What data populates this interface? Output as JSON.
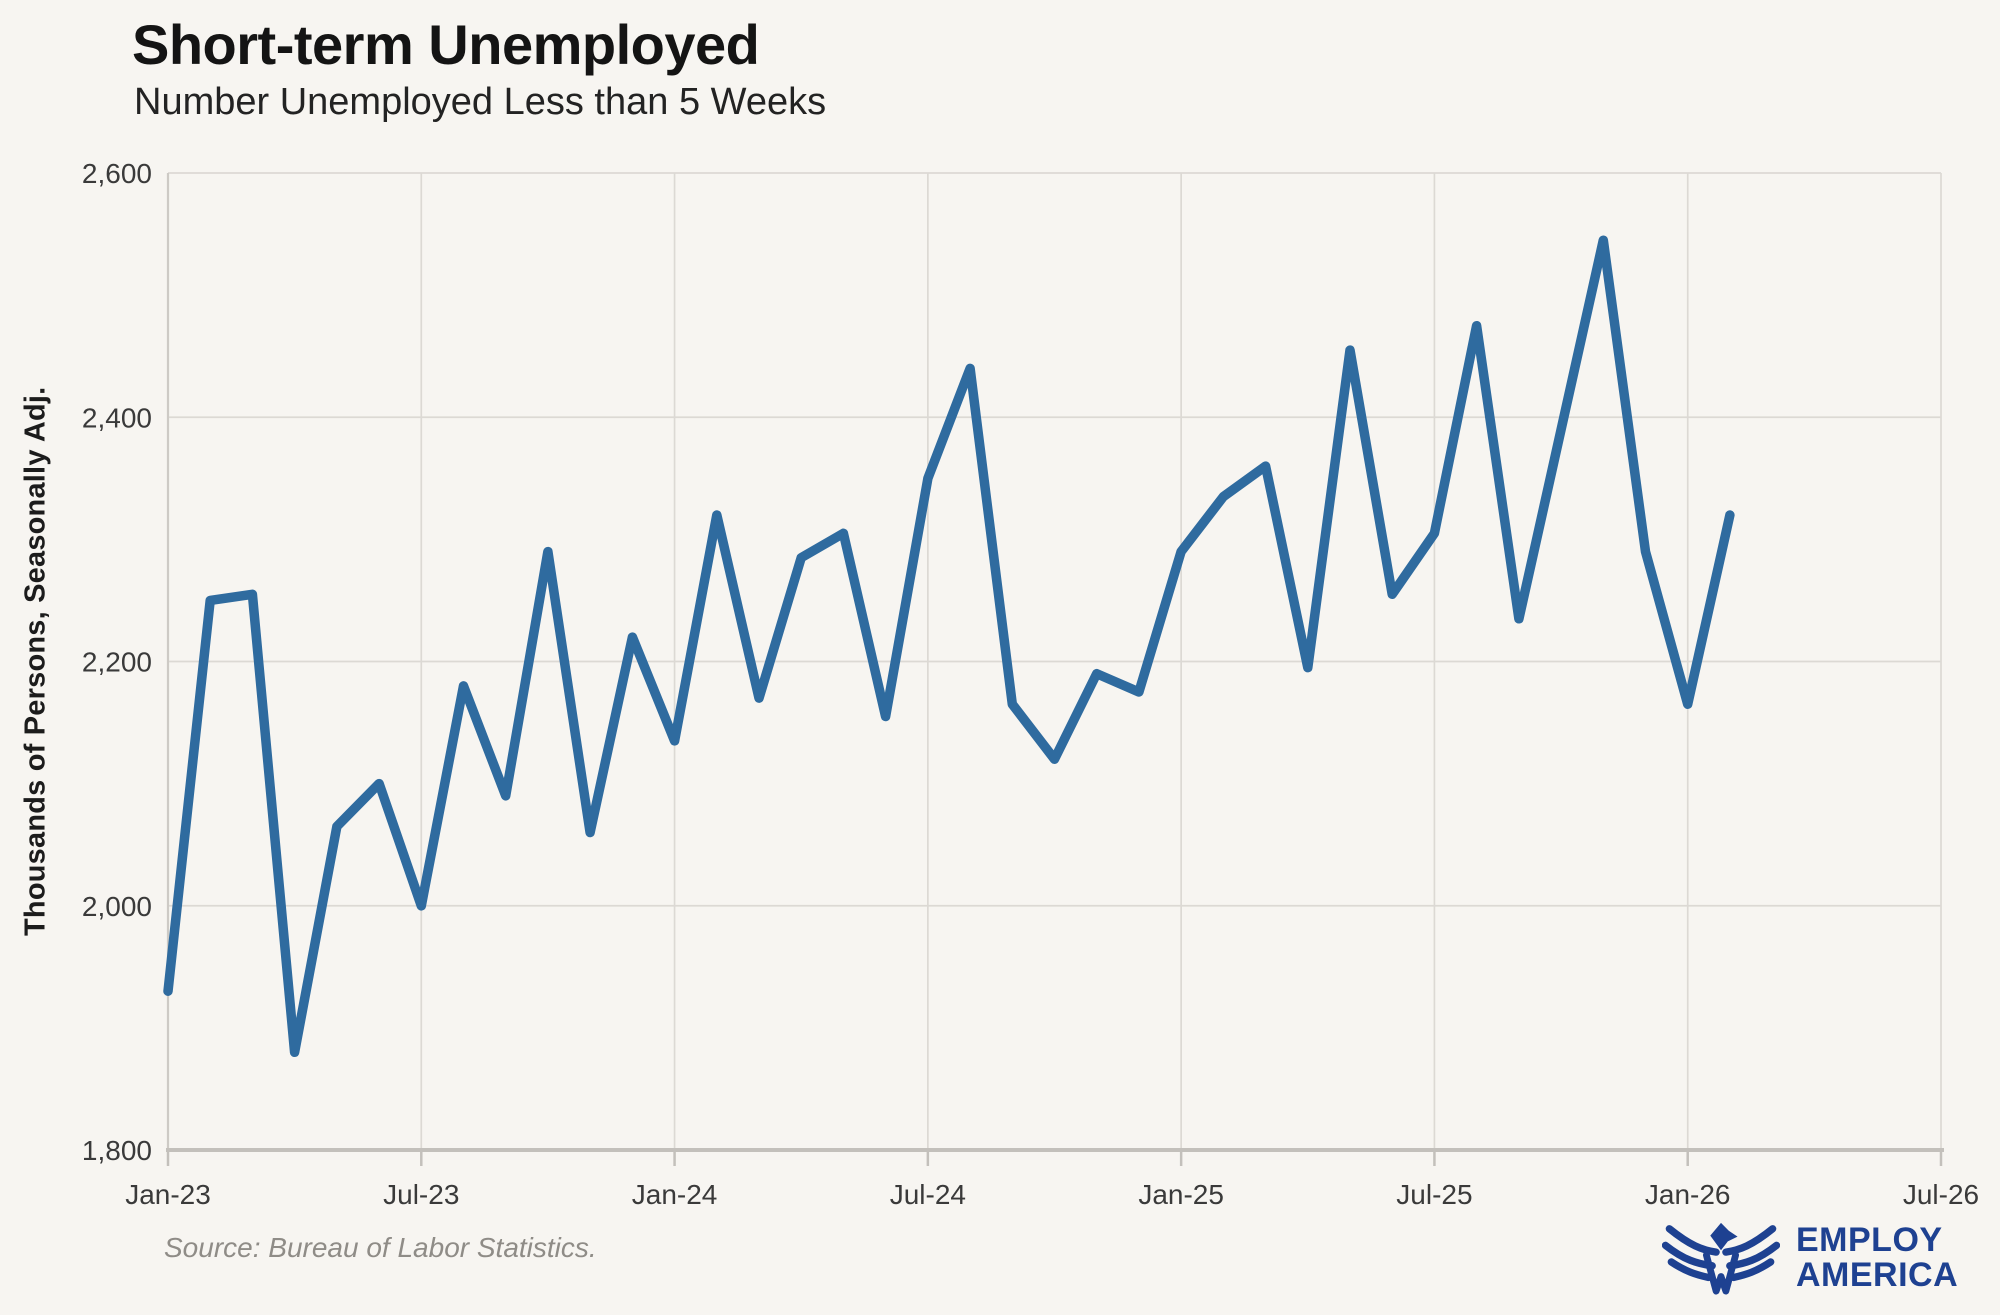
{
  "header": {
    "title": "Short-term Unemployed",
    "subtitle": "Number Unemployed Less than 5 Weeks"
  },
  "y_axis_title": "Thousands of Persons, Seasonally Adj.",
  "source_note": "Source: Bureau of Labor Statistics.",
  "logo": {
    "line1": "EMPLOY",
    "line2": "AMERICA",
    "color": "#1e4191",
    "icon": "eagle-wings-w-mark"
  },
  "colors": {
    "background": "#f7f5f1",
    "line": "#2f6b9f",
    "grid": "#dcd9d4",
    "axis": "#c3c0bb",
    "tick": "#3a3a3a",
    "source": "#8f8c87",
    "brand": "#1e4191"
  },
  "chart_data": {
    "type": "line",
    "title": "Short-term Unemployed",
    "subtitle": "Number Unemployed Less than 5 Weeks",
    "xlabel": "",
    "ylabel": "Thousands of Persons, Seasonally Adj.",
    "x": [
      "Jan-23",
      "Feb-23",
      "Mar-23",
      "Apr-23",
      "May-23",
      "Jun-23",
      "Jul-23",
      "Aug-23",
      "Sep-23",
      "Oct-23",
      "Nov-23",
      "Dec-23",
      "Jan-24",
      "Feb-24",
      "Mar-24",
      "Apr-24",
      "May-24",
      "Jun-24",
      "Jul-24",
      "Aug-24",
      "Sep-24",
      "Oct-24",
      "Nov-24",
      "Dec-24",
      "Jan-25",
      "Feb-25",
      "Mar-25",
      "Apr-25",
      "May-25",
      "Jun-25",
      "Jul-25",
      "Aug-25",
      "Sep-25",
      "Oct-25",
      "Nov-25",
      "Dec-25",
      "Jan-26",
      "Feb-26"
    ],
    "values": [
      1930,
      2250,
      2255,
      1880,
      2065,
      2100,
      2000,
      2180,
      2090,
      2290,
      2060,
      2220,
      2135,
      2320,
      2170,
      2285,
      2305,
      2155,
      2350,
      2440,
      2165,
      2120,
      2190,
      2175,
      2290,
      2335,
      2360,
      2195,
      2455,
      2255,
      2305,
      2475,
      2235,
      2390,
      2545,
      2290,
      2165,
      2320
    ],
    "x_tick_labels": [
      "Jan-23",
      "Jul-23",
      "Jan-24",
      "Jul-24",
      "Jan-25",
      "Jul-25",
      "Jan-26",
      "Jul-26"
    ],
    "x_tick_month_index": [
      0,
      6,
      12,
      18,
      24,
      30,
      36,
      42
    ],
    "x_total_months": 42,
    "y_ticks": [
      1800,
      2000,
      2200,
      2400,
      2600
    ],
    "ylim": [
      1800,
      2600
    ],
    "grid": true,
    "legend": "none"
  }
}
